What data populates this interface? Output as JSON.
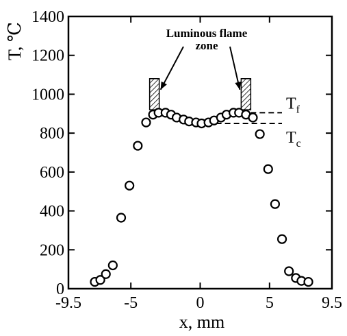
{
  "chart_data": {
    "type": "scatter",
    "title": "",
    "xlabel": "x, mm",
    "ylabel": "T, ℃",
    "xlim": [
      -9.5,
      9.5
    ],
    "ylim": [
      0,
      1400
    ],
    "x_ticks": [
      -9.5,
      -5,
      0,
      5,
      9.5
    ],
    "x_tick_labels": [
      "-9.5",
      "-5",
      "0",
      "5",
      "9.5"
    ],
    "y_ticks": [
      0,
      200,
      400,
      600,
      800,
      1000,
      1200,
      1400
    ],
    "y_tick_labels": [
      "0",
      "200",
      "400",
      "600",
      "800",
      "1000",
      "1200",
      "1400"
    ],
    "grid": false,
    "series": [
      {
        "marker": "open-circle",
        "points": [
          {
            "x": -7.6,
            "y": 35
          },
          {
            "x": -7.2,
            "y": 45
          },
          {
            "x": -6.8,
            "y": 75
          },
          {
            "x": -6.3,
            "y": 120
          },
          {
            "x": -5.7,
            "y": 365
          },
          {
            "x": -5.1,
            "y": 530
          },
          {
            "x": -4.5,
            "y": 735
          },
          {
            "x": -3.9,
            "y": 855
          },
          {
            "x": -3.4,
            "y": 895
          },
          {
            "x": -3.0,
            "y": 905
          },
          {
            "x": -2.5,
            "y": 905
          },
          {
            "x": -2.1,
            "y": 895
          },
          {
            "x": -1.7,
            "y": 880
          },
          {
            "x": -1.2,
            "y": 870
          },
          {
            "x": -0.8,
            "y": 860
          },
          {
            "x": -0.3,
            "y": 855
          },
          {
            "x": 0.1,
            "y": 850
          },
          {
            "x": 0.6,
            "y": 855
          },
          {
            "x": 1.0,
            "y": 865
          },
          {
            "x": 1.5,
            "y": 880
          },
          {
            "x": 1.9,
            "y": 895
          },
          {
            "x": 2.4,
            "y": 905
          },
          {
            "x": 2.8,
            "y": 905
          },
          {
            "x": 3.3,
            "y": 895
          },
          {
            "x": 3.8,
            "y": 880
          },
          {
            "x": 4.3,
            "y": 795
          },
          {
            "x": 4.9,
            "y": 615
          },
          {
            "x": 5.4,
            "y": 435
          },
          {
            "x": 5.9,
            "y": 255
          },
          {
            "x": 6.4,
            "y": 90
          },
          {
            "x": 6.9,
            "y": 55
          },
          {
            "x": 7.3,
            "y": 40
          },
          {
            "x": 7.8,
            "y": 35
          }
        ]
      }
    ],
    "annotations": {
      "flame_zone_line1": "Luminous flame",
      "flame_zone_line2": "zone",
      "flame_zone_x": [
        -3.3,
        3.3
      ],
      "flame_zone_y": [
        920,
        1080
      ],
      "tf": {
        "label": "T",
        "sub": "f",
        "y": 905,
        "x_start": 3.0
      },
      "tc": {
        "label": "T",
        "sub": "c",
        "y": 850,
        "x_start": 0.5
      }
    }
  }
}
